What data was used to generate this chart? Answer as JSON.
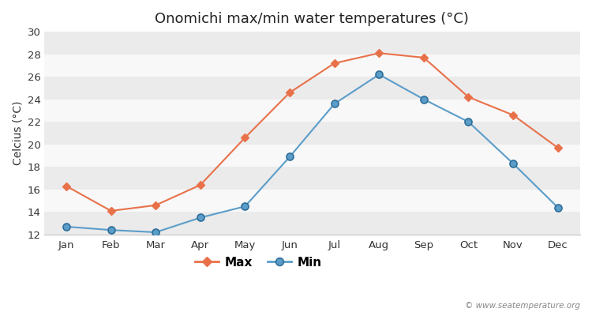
{
  "title": "Onomichi max/min water temperatures (°C)",
  "ylabel": "Celcius (°C)",
  "months": [
    "Jan",
    "Feb",
    "Mar",
    "Apr",
    "May",
    "Jun",
    "Jul",
    "Aug",
    "Sep",
    "Oct",
    "Nov",
    "Dec"
  ],
  "max_values": [
    16.3,
    14.1,
    14.6,
    16.4,
    20.6,
    24.6,
    27.2,
    28.1,
    27.7,
    24.2,
    22.6,
    19.7
  ],
  "min_values": [
    12.7,
    12.4,
    12.2,
    13.5,
    14.5,
    18.9,
    23.6,
    26.2,
    24.0,
    22.0,
    18.3,
    14.4
  ],
  "max_color": "#e8714a",
  "min_color": "#5b9dc9",
  "fig_bg_color": "#ffffff",
  "band_light": "#ebebeb",
  "band_white": "#f8f8f8",
  "ylim_min": 12,
  "ylim_max": 30,
  "yticks": [
    12,
    14,
    16,
    18,
    20,
    22,
    24,
    26,
    28,
    30
  ],
  "watermark": "© www.seatemperature.org",
  "legend_max": "Max",
  "legend_min": "Min",
  "title_fontsize": 13,
  "label_fontsize": 10,
  "tick_fontsize": 9.5
}
